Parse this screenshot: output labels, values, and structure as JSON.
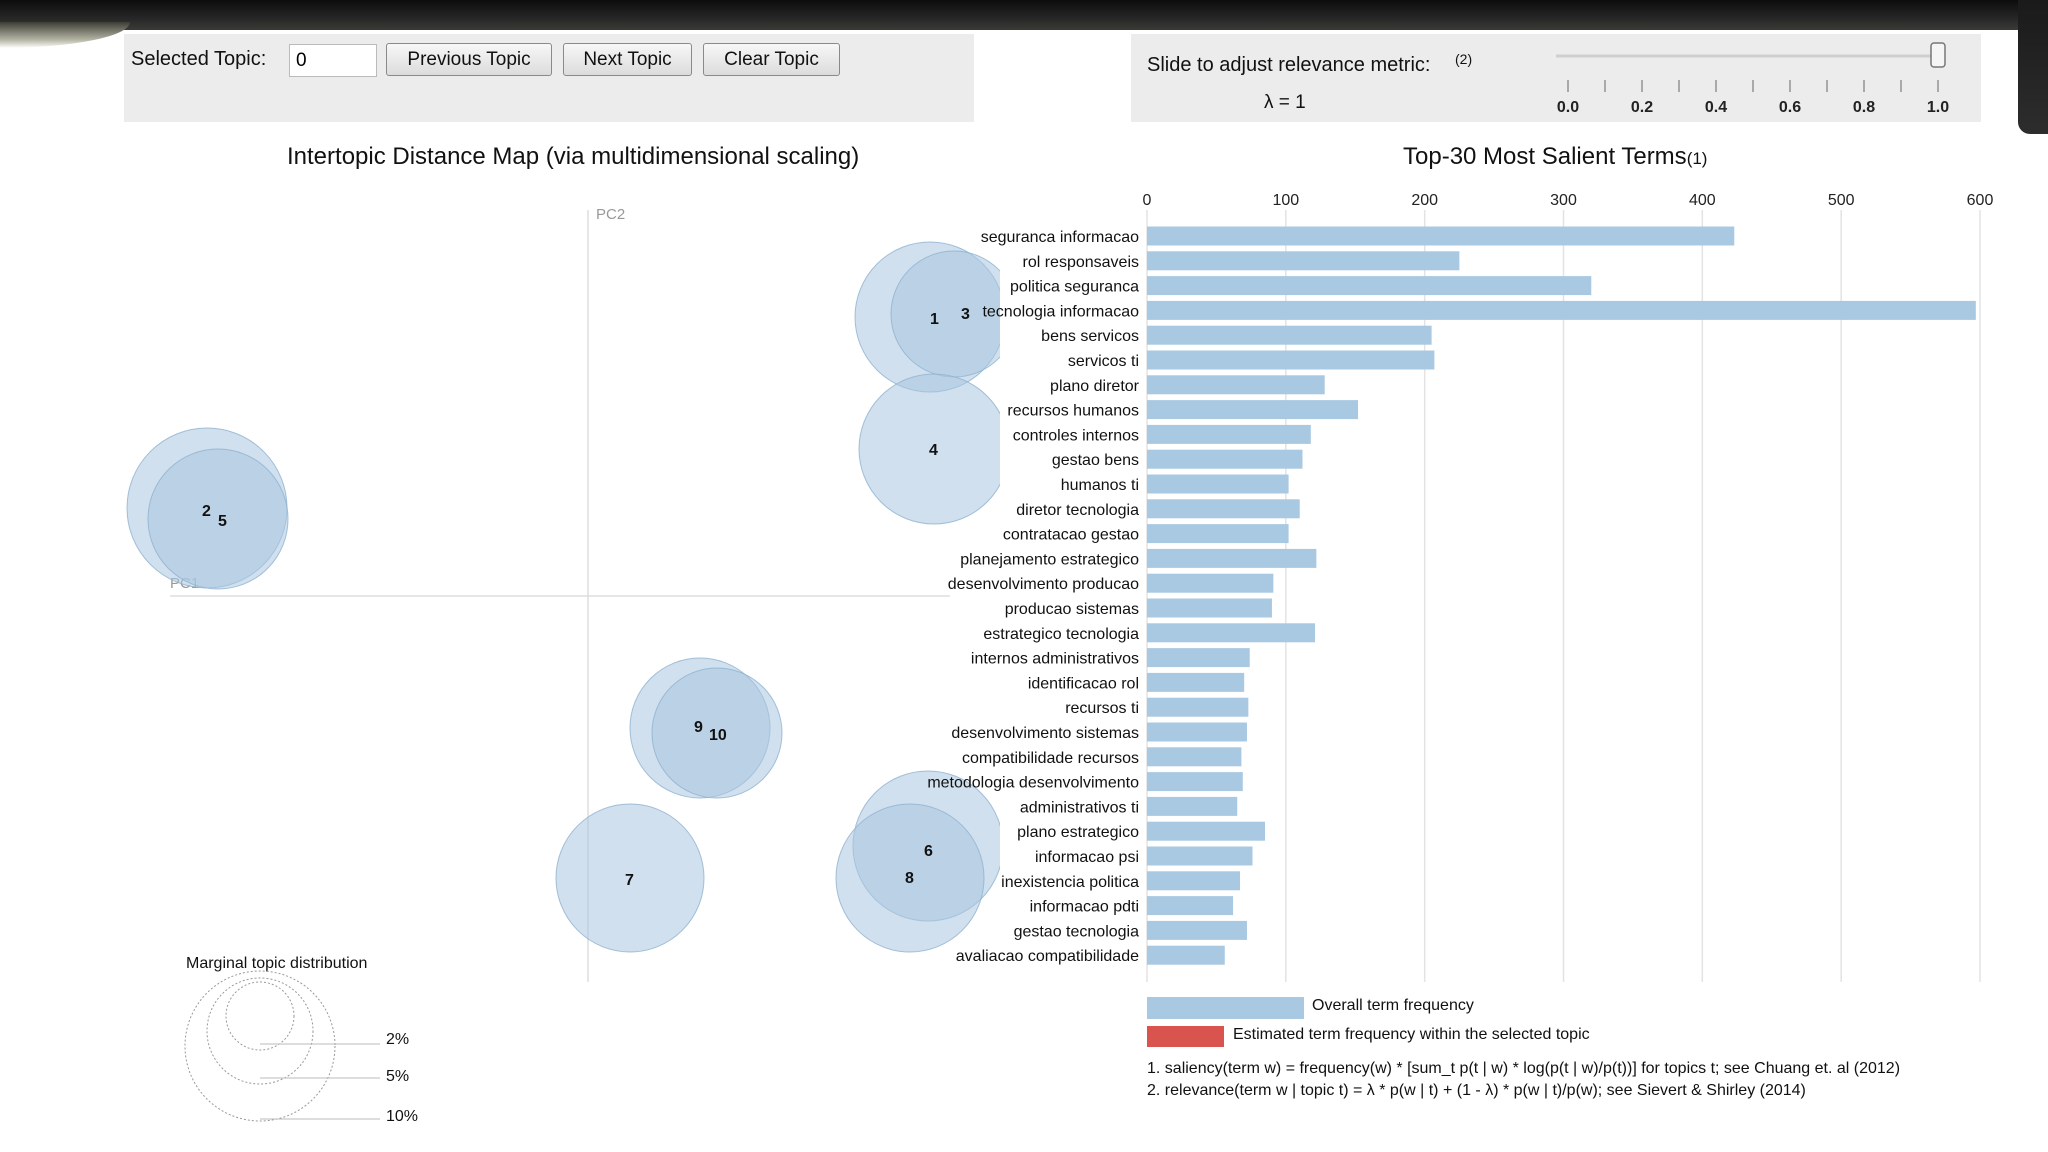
{
  "controls": {
    "selected_topic_label": "Selected Topic:",
    "selected_topic_value": "0",
    "prev_button": "Previous Topic",
    "next_button": "Next Topic",
    "clear_button": "Clear Topic",
    "slider_label": "Slide to adjust relevance metric:",
    "slider_footnote": "(2)",
    "lambda_text": "λ = 1",
    "lambda_value": 1.0,
    "slider_ticks": [
      "0.0",
      "0.2",
      "0.4",
      "0.6",
      "0.8",
      "1.0"
    ]
  },
  "map": {
    "title": "Intertopic Distance Map (via multidimensional scaling)",
    "pc1_label": "PC1",
    "pc2_label": "PC2",
    "topics": [
      {
        "id": "1"
      },
      {
        "id": "2"
      },
      {
        "id": "3"
      },
      {
        "id": "4"
      },
      {
        "id": "5"
      },
      {
        "id": "6"
      },
      {
        "id": "7"
      },
      {
        "id": "8"
      },
      {
        "id": "9"
      },
      {
        "id": "10"
      }
    ],
    "marginal_title": "Marginal topic distribution",
    "marginal_labels": [
      "2%",
      "5%",
      "10%"
    ]
  },
  "terms_panel": {
    "title": "Top-30 Most Salient Terms",
    "title_footnote": "(1)",
    "axis_ticks": [
      "0",
      "100",
      "200",
      "300",
      "400",
      "500",
      "600"
    ],
    "legend_overall": "Overall term frequency",
    "legend_selected": "Estimated term frequency within the selected topic",
    "footnote1": "1. saliency(term w) = frequency(w) * [sum_t p(t | w) * log(p(t | w)/p(t))] for topics t; see Chuang et. al (2012)",
    "footnote2": "2. relevance(term w | topic t) = λ * p(w | t) + (1 - λ) * p(w | t)/p(w); see Sievert & Shirley (2014)",
    "bar_color": "#a9c9e2",
    "selected_color": "#d9534f"
  },
  "chart_data": {
    "type": "bar",
    "orientation": "horizontal",
    "title": "Top-30 Most Salient Terms",
    "xlim": [
      0,
      600
    ],
    "categories": [
      "seguranca informacao",
      "rol responsaveis",
      "politica seguranca",
      "tecnologia informacao",
      "bens servicos",
      "servicos ti",
      "plano diretor",
      "recursos humanos",
      "controles internos",
      "gestao bens",
      "humanos ti",
      "diretor tecnologia",
      "contratacao gestao",
      "planejamento estrategico",
      "desenvolvimento producao",
      "producao sistemas",
      "estrategico tecnologia",
      "internos administrativos",
      "identificacao rol",
      "recursos ti",
      "desenvolvimento sistemas",
      "compatibilidade recursos",
      "metodologia desenvolvimento",
      "administrativos ti",
      "plano estrategico",
      "informacao psi",
      "inexistencia politica",
      "informacao pdti",
      "gestao tecnologia",
      "avaliacao compatibilidade"
    ],
    "series": [
      {
        "name": "Overall term frequency",
        "values": [
          423,
          225,
          320,
          597,
          205,
          207,
          128,
          152,
          118,
          112,
          102,
          110,
          102,
          122,
          91,
          90,
          121,
          74,
          70,
          73,
          72,
          68,
          69,
          65,
          85,
          76,
          67,
          62,
          72,
          56
        ]
      }
    ]
  }
}
